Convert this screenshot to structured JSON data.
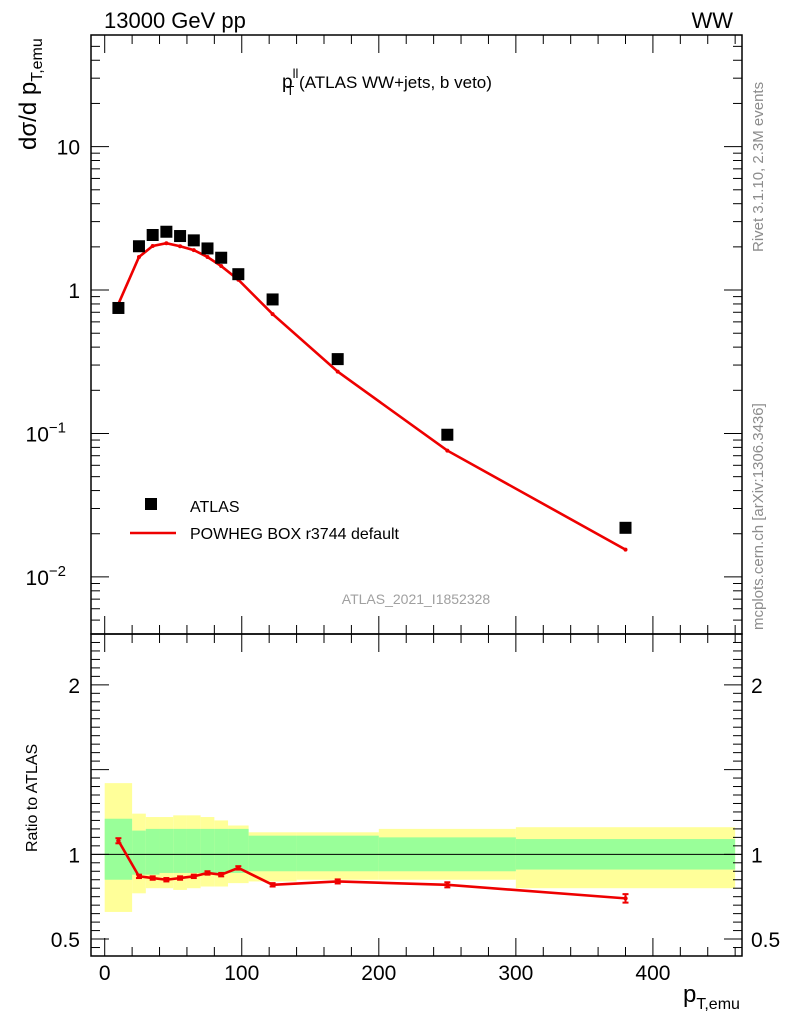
{
  "header": {
    "left": "13000 GeV pp",
    "right": "WW"
  },
  "side_labels": {
    "rivet": "Rivet 3.1.10,  2.3M events",
    "mcplots": "mcplots.cern.ch [arXiv:1306.3436]"
  },
  "watermark": "ATLAS_2021_I1852328",
  "colors": {
    "data": "#000000",
    "mc": "#ee0000",
    "band_inner": "#99ff99",
    "band_outer": "#ffff99",
    "side_text": "#8c8c8c"
  },
  "chart_data": [
    {
      "type": "scatter",
      "scale": "log",
      "title_main": "p",
      "title_sup": "ll",
      "title_sub": "T",
      "title_rest": " (ATLAS WW+jets, b veto)",
      "ylabel_main": "dσ/d p",
      "ylabel_sub": "T,emu",
      "ylim": [
        0.004,
        60
      ],
      "xlim": [
        -10,
        465
      ],
      "yticks": [
        {
          "value": 10,
          "label": "10"
        },
        {
          "value": 1,
          "label": "1"
        },
        {
          "value": 0.1,
          "label": "10",
          "sup": "−1"
        },
        {
          "value": 0.01,
          "label": "10",
          "sup": "−2"
        }
      ],
      "legend": [
        {
          "label": "ATLAS",
          "marker": "square"
        },
        {
          "label": "POWHEG BOX r3744 default",
          "marker": "line"
        }
      ],
      "series": [
        {
          "name": "ATLAS",
          "x": [
            10,
            25,
            35,
            45,
            55,
            65,
            75,
            85,
            97.5,
            122.5,
            170,
            250,
            380
          ],
          "y": [
            0.75,
            2.02,
            2.42,
            2.55,
            2.38,
            2.22,
            1.95,
            1.68,
            1.29,
            0.86,
            0.33,
            0.098,
            0.022
          ]
        },
        {
          "name": "POWHEG BOX r3744 default",
          "x": [
            10,
            25,
            35,
            45,
            55,
            65,
            75,
            85,
            97.5,
            122.5,
            170,
            250,
            380
          ],
          "y": [
            0.8,
            1.7,
            2.03,
            2.12,
            2.02,
            1.9,
            1.7,
            1.47,
            1.18,
            0.68,
            0.27,
            0.076,
            0.0155
          ]
        }
      ]
    },
    {
      "type": "line",
      "ylabel": "Ratio to ATLAS",
      "xlabel_main": "p",
      "xlabel_sub": "T,emu",
      "xlim": [
        -10,
        465
      ],
      "ylim": [
        0.4,
        2.3
      ],
      "yticks": [
        {
          "value": 0.5,
          "label": "0.5"
        },
        {
          "value": 1,
          "label": "1"
        },
        {
          "value": 2,
          "label": "2"
        }
      ],
      "xticks": [
        {
          "value": 0,
          "label": "0"
        },
        {
          "value": 100,
          "label": "100"
        },
        {
          "value": 200,
          "label": "200"
        },
        {
          "value": 300,
          "label": "300"
        },
        {
          "value": 400,
          "label": "400"
        }
      ],
      "bands": {
        "edges": [
          0,
          20,
          30,
          40,
          50,
          60,
          70,
          80,
          90,
          105,
          140,
          200,
          300,
          460
        ],
        "inner": [
          [
            0.85,
            1.21
          ],
          [
            0.88,
            1.14
          ],
          [
            0.88,
            1.15
          ],
          [
            0.89,
            1.15
          ],
          [
            0.89,
            1.15
          ],
          [
            0.89,
            1.15
          ],
          [
            0.89,
            1.15
          ],
          [
            0.89,
            1.15
          ],
          [
            0.89,
            1.15
          ],
          [
            0.9,
            1.11
          ],
          [
            0.9,
            1.11
          ],
          [
            0.9,
            1.1
          ],
          [
            0.91,
            1.09
          ]
        ],
        "outer": [
          [
            0.66,
            1.42
          ],
          [
            0.77,
            1.24
          ],
          [
            0.8,
            1.22
          ],
          [
            0.8,
            1.22
          ],
          [
            0.79,
            1.23
          ],
          [
            0.8,
            1.23
          ],
          [
            0.81,
            1.22
          ],
          [
            0.81,
            1.2
          ],
          [
            0.83,
            1.17
          ],
          [
            0.84,
            1.13
          ],
          [
            0.85,
            1.13
          ],
          [
            0.85,
            1.15
          ],
          [
            0.8,
            1.16
          ]
        ]
      },
      "series": [
        {
          "name": "POWHEG BOX r3744 default",
          "x": [
            10,
            25,
            35,
            45,
            55,
            65,
            75,
            85,
            97.5,
            122.5,
            170,
            250,
            380
          ],
          "y": [
            1.08,
            0.87,
            0.86,
            0.85,
            0.86,
            0.87,
            0.89,
            0.88,
            0.92,
            0.82,
            0.84,
            0.82,
            0.74
          ],
          "err": [
            0.015,
            0.01,
            0.01,
            0.01,
            0.01,
            0.01,
            0.01,
            0.01,
            0.01,
            0.01,
            0.012,
            0.015,
            0.025
          ]
        }
      ]
    }
  ]
}
